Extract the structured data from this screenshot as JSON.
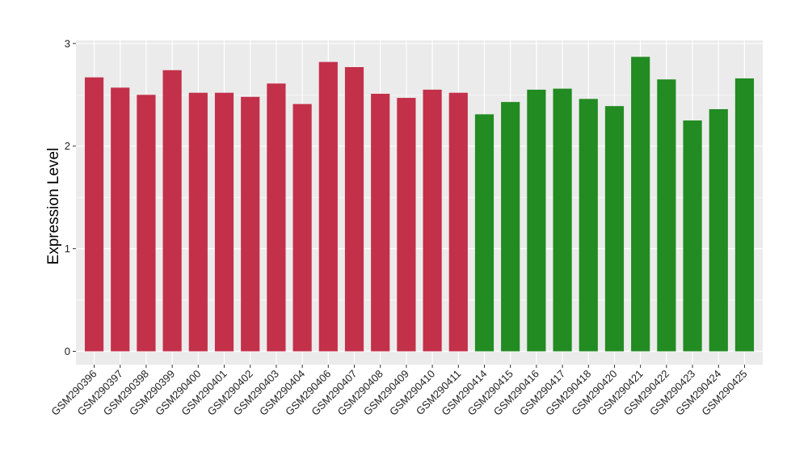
{
  "chart_data": {
    "type": "bar",
    "title": "",
    "xlabel": "",
    "ylabel": "Expression Level",
    "ylim": [
      -0.13,
      3.03
    ],
    "yticks": [
      0,
      1,
      2,
      3
    ],
    "grid": true,
    "categories": [
      "GSM290396",
      "GSM290397",
      "GSM290398",
      "GSM290399",
      "GSM290400",
      "GSM290401",
      "GSM290402",
      "GSM290403",
      "GSM290404",
      "GSM290406",
      "GSM290407",
      "GSM290408",
      "GSM290409",
      "GSM290410",
      "GSM290411",
      "GSM290414",
      "GSM290415",
      "GSM290416",
      "GSM290417",
      "GSM290418",
      "GSM290420",
      "GSM290421",
      "GSM290422",
      "GSM290423",
      "GSM290424",
      "GSM290425"
    ],
    "values": [
      2.67,
      2.57,
      2.5,
      2.74,
      2.52,
      2.52,
      2.48,
      2.61,
      2.41,
      2.82,
      2.77,
      2.51,
      2.47,
      2.55,
      2.52,
      2.31,
      2.43,
      2.55,
      2.56,
      2.46,
      2.39,
      2.87,
      2.65,
      2.25,
      2.36,
      2.66
    ],
    "groups": [
      "red",
      "red",
      "red",
      "red",
      "red",
      "red",
      "red",
      "red",
      "red",
      "red",
      "red",
      "red",
      "red",
      "red",
      "red",
      "green",
      "green",
      "green",
      "green",
      "green",
      "green",
      "green",
      "green",
      "green",
      "green",
      "green"
    ],
    "colors": {
      "red": "#C3304A",
      "green": "#228B22",
      "panel": "#EBEBEB",
      "grid": "#FFFFFF"
    }
  }
}
